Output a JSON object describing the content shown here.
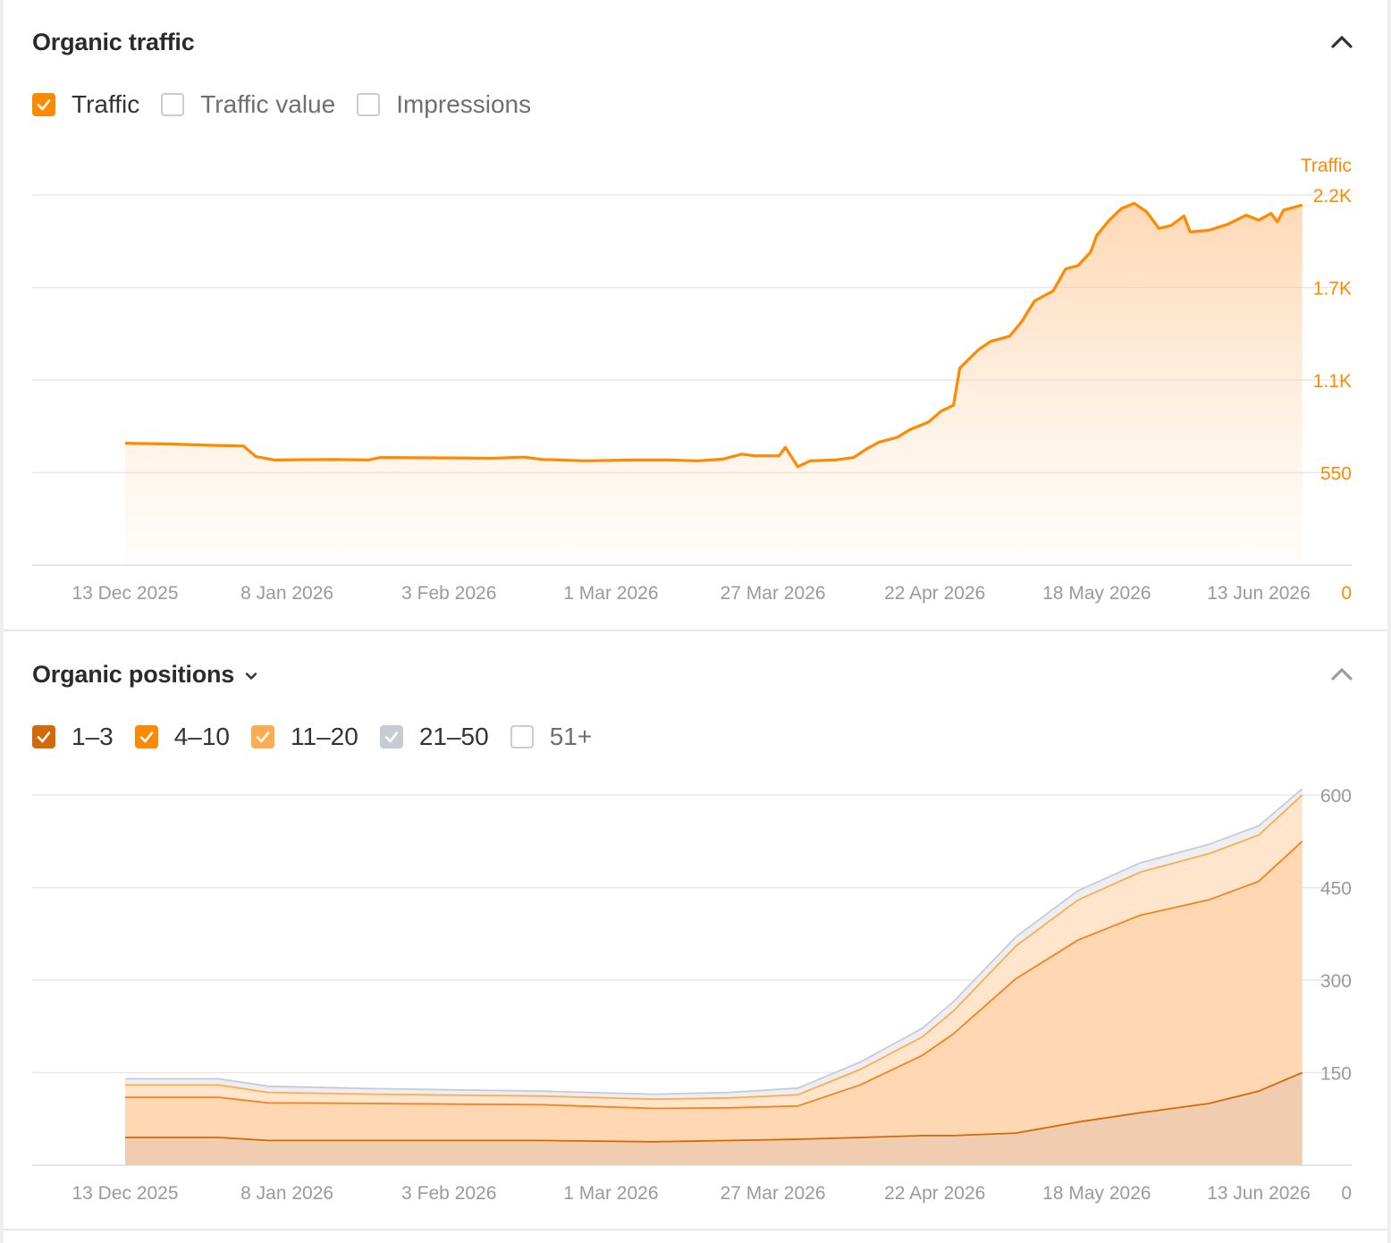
{
  "traffic_panel": {
    "title": "Organic traffic",
    "legend": [
      {
        "label": "Traffic",
        "checked": true,
        "color": "#ff8a00"
      },
      {
        "label": "Traffic value",
        "checked": false
      },
      {
        "label": "Impressions",
        "checked": false
      }
    ]
  },
  "positions_panel": {
    "title": "Organic positions",
    "legend": [
      {
        "label": "1–3",
        "checked": true,
        "color": "#d4690c"
      },
      {
        "label": "4–10",
        "checked": true,
        "color": "#ff8a00"
      },
      {
        "label": "11–20",
        "checked": true,
        "color": "#ffab52"
      },
      {
        "label": "21–50",
        "checked": true,
        "color": "#c7ccd4"
      },
      {
        "label": "51+",
        "checked": false
      }
    ]
  },
  "chart_data": [
    {
      "type": "area",
      "ylabel": "Traffic",
      "y_axis_position": "right",
      "ylim": [
        0,
        2200
      ],
      "y_ticks": [
        0,
        550,
        1100,
        1650,
        2200
      ],
      "y_tick_labels": [
        "0",
        "550",
        "1.1K",
        "1.7K",
        "2.2K"
      ],
      "x_ticks": [
        "13 Dec 2025",
        "8 Jan 2026",
        "3 Feb 2026",
        "1 Mar 2026",
        "27 Mar 2026",
        "22 Apr 2026",
        "18 May 2026",
        "13 Jun 2026"
      ],
      "x_tick_dates": [
        "2025-12-13",
        "2026-01-08",
        "2026-02-03",
        "2026-03-01",
        "2026-03-27",
        "2026-04-22",
        "2026-05-18",
        "2026-06-13"
      ],
      "grid": true,
      "colors": {
        "line": "#ff8a00",
        "tick": "#ff8a00"
      },
      "series": [
        {
          "name": "Traffic",
          "points": [
            [
              "2025-12-13",
              725
            ],
            [
              "2025-12-20",
              720
            ],
            [
              "2025-12-27",
              712
            ],
            [
              "2026-01-01",
              708
            ],
            [
              "2026-01-03",
              645
            ],
            [
              "2026-01-06",
              625
            ],
            [
              "2026-01-15",
              628
            ],
            [
              "2026-01-21",
              625
            ],
            [
              "2026-01-23",
              640
            ],
            [
              "2026-02-03",
              637
            ],
            [
              "2026-02-10",
              635
            ],
            [
              "2026-02-15",
              642
            ],
            [
              "2026-02-18",
              628
            ],
            [
              "2026-02-25",
              620
            ],
            [
              "2026-03-05",
              625
            ],
            [
              "2026-03-10",
              625
            ],
            [
              "2026-03-15",
              620
            ],
            [
              "2026-03-19",
              630
            ],
            [
              "2026-03-22",
              660
            ],
            [
              "2026-03-24",
              650
            ],
            [
              "2026-03-28",
              650
            ],
            [
              "2026-03-29",
              700
            ],
            [
              "2026-03-31",
              585
            ],
            [
              "2026-04-02",
              620
            ],
            [
              "2026-04-06",
              625
            ],
            [
              "2026-04-09",
              640
            ],
            [
              "2026-04-11",
              690
            ],
            [
              "2026-04-13",
              730
            ],
            [
              "2026-04-16",
              760
            ],
            [
              "2026-04-18",
              805
            ],
            [
              "2026-04-21",
              850
            ],
            [
              "2026-04-23",
              915
            ],
            [
              "2026-04-25",
              950
            ],
            [
              "2026-04-26",
              1170
            ],
            [
              "2026-04-29",
              1280
            ],
            [
              "2026-05-01",
              1330
            ],
            [
              "2026-05-04",
              1360
            ],
            [
              "2026-05-06",
              1450
            ],
            [
              "2026-05-08",
              1570
            ],
            [
              "2026-05-11",
              1630
            ],
            [
              "2026-05-13",
              1760
            ],
            [
              "2026-05-15",
              1780
            ],
            [
              "2026-05-17",
              1860
            ],
            [
              "2026-05-18",
              1960
            ],
            [
              "2026-05-20",
              2050
            ],
            [
              "2026-05-22",
              2120
            ],
            [
              "2026-05-24",
              2150
            ],
            [
              "2026-05-26",
              2100
            ],
            [
              "2026-05-28",
              2000
            ],
            [
              "2026-05-30",
              2020
            ],
            [
              "2026-06-01",
              2075
            ],
            [
              "2026-06-02",
              1980
            ],
            [
              "2026-06-05",
              1990
            ],
            [
              "2026-06-08",
              2025
            ],
            [
              "2026-06-11",
              2080
            ],
            [
              "2026-06-13",
              2050
            ],
            [
              "2026-06-15",
              2090
            ],
            [
              "2026-06-16",
              2040
            ],
            [
              "2026-06-17",
              2110
            ],
            [
              "2026-06-20",
              2140
            ]
          ]
        }
      ]
    },
    {
      "type": "area",
      "stacked": true,
      "y_axis_position": "right",
      "ylim": [
        0,
        600
      ],
      "y_ticks": [
        0,
        150,
        300,
        450,
        600
      ],
      "y_tick_labels": [
        "0",
        "150",
        "300",
        "450",
        "600"
      ],
      "x_ticks": [
        "13 Dec 2025",
        "8 Jan 2026",
        "3 Feb 2026",
        "1 Mar 2026",
        "27 Mar 2026",
        "22 Apr 2026",
        "18 May 2026",
        "13 Jun 2026"
      ],
      "x_tick_dates": [
        "2025-12-13",
        "2026-01-08",
        "2026-02-03",
        "2026-03-01",
        "2026-03-27",
        "2026-04-22",
        "2026-05-18",
        "2026-06-13"
      ],
      "grid": true,
      "colors": {
        "tick": "#9a9a9a"
      },
      "dates": [
        "2025-12-13",
        "2025-12-28",
        "2026-01-05",
        "2026-01-22",
        "2026-02-18",
        "2026-03-08",
        "2026-03-20",
        "2026-03-31",
        "2026-04-10",
        "2026-04-20",
        "2026-04-25",
        "2026-05-05",
        "2026-05-15",
        "2026-05-25",
        "2026-06-05",
        "2026-06-13",
        "2026-06-20"
      ],
      "series": [
        {
          "name": "1–3",
          "values": [
            45,
            45,
            40,
            40,
            40,
            38,
            40,
            42,
            45,
            48,
            48,
            52,
            70,
            85,
            100,
            120,
            150
          ]
        },
        {
          "name": "4–10",
          "values": [
            65,
            65,
            61,
            60,
            58,
            54,
            53,
            54,
            85,
            130,
            165,
            250,
            295,
            320,
            330,
            340,
            375
          ]
        },
        {
          "name": "11–20",
          "values": [
            20,
            20,
            17,
            15,
            14,
            15,
            16,
            18,
            25,
            30,
            37,
            53,
            65,
            70,
            75,
            75,
            75
          ]
        },
        {
          "name": "21–50",
          "values": [
            10,
            10,
            10,
            9,
            8,
            8,
            9,
            11,
            12,
            14,
            15,
            15,
            15,
            15,
            15,
            15,
            10
          ]
        }
      ]
    }
  ]
}
